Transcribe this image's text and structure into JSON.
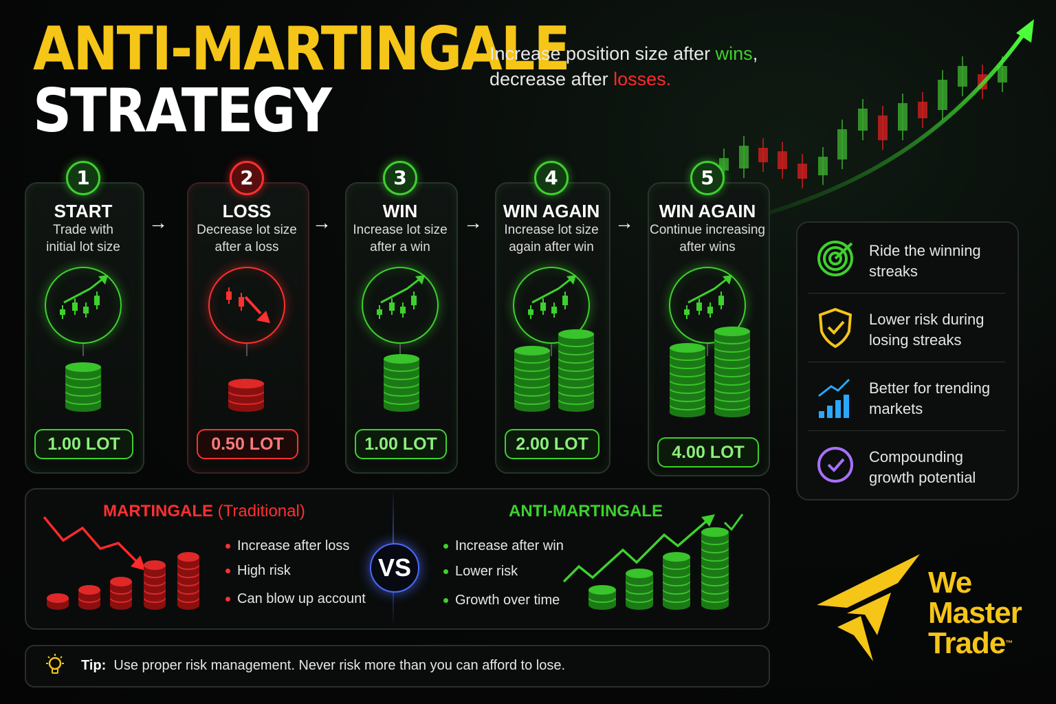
{
  "header": {
    "title_line1": "ANTI-MARTINGALE",
    "title_line2": "STRATEGY",
    "subtitle_pre": "Increase position size after ",
    "subtitle_wins": "wins",
    "subtitle_mid": ",",
    "subtitle_line2_pre": "decrease after ",
    "subtitle_losses": "losses",
    "subtitle_end": "."
  },
  "steps": [
    {
      "number": "1",
      "title": "START",
      "desc_line1": "Trade with",
      "desc_line2": "initial lot size",
      "lot": "1.00 LOT",
      "tone": "green"
    },
    {
      "number": "2",
      "title": "LOSS",
      "desc_line1": "Decrease lot size",
      "desc_line2": "after a loss",
      "lot": "0.50 LOT",
      "tone": "red"
    },
    {
      "number": "3",
      "title": "WIN",
      "desc_line1": "Increase lot size",
      "desc_line2": "after a win",
      "lot": "1.00 LOT",
      "tone": "green"
    },
    {
      "number": "4",
      "title": "WIN AGAIN",
      "desc_line1": "Increase lot size",
      "desc_line2": "again after win",
      "lot": "2.00 LOT",
      "tone": "green"
    },
    {
      "number": "5",
      "title": "WIN AGAIN",
      "desc_line1": "Continue increasing",
      "desc_line2": "after wins",
      "lot": "4.00 LOT",
      "tone": "green"
    }
  ],
  "benefits": [
    {
      "line1": "Ride the winning",
      "line2": "streaks",
      "icon": "target-icon"
    },
    {
      "line1": "Lower risk during",
      "line2": "losing streaks",
      "icon": "shield-check-icon"
    },
    {
      "line1": "Better for trending",
      "line2": "markets",
      "icon": "bar-growth-icon"
    },
    {
      "line1": "Compounding",
      "line2": "growth potential",
      "icon": "check-circle-icon"
    }
  ],
  "comparison": {
    "martingale_title": "MARTINGALE",
    "martingale_sub": "(Traditional)",
    "martingale_points": [
      "Increase after loss",
      "High risk",
      "Can blow up account"
    ],
    "vs_label": "VS",
    "anti_title": "ANTI-MARTINGALE",
    "anti_points": [
      "Increase after win",
      "Lower risk",
      "Growth over time"
    ]
  },
  "tip": {
    "label": "Tip:",
    "text": "Use proper risk management. Never risk more than you can afford to lose."
  },
  "logo": {
    "line1": "We",
    "line2": "Master",
    "line3": "Trade",
    "tm": "™"
  },
  "colors": {
    "accent_yellow": "#f5c518",
    "win_green": "#3ed12e",
    "loss_red": "#ff2a2a",
    "vs_blue": "#4a6aff"
  }
}
